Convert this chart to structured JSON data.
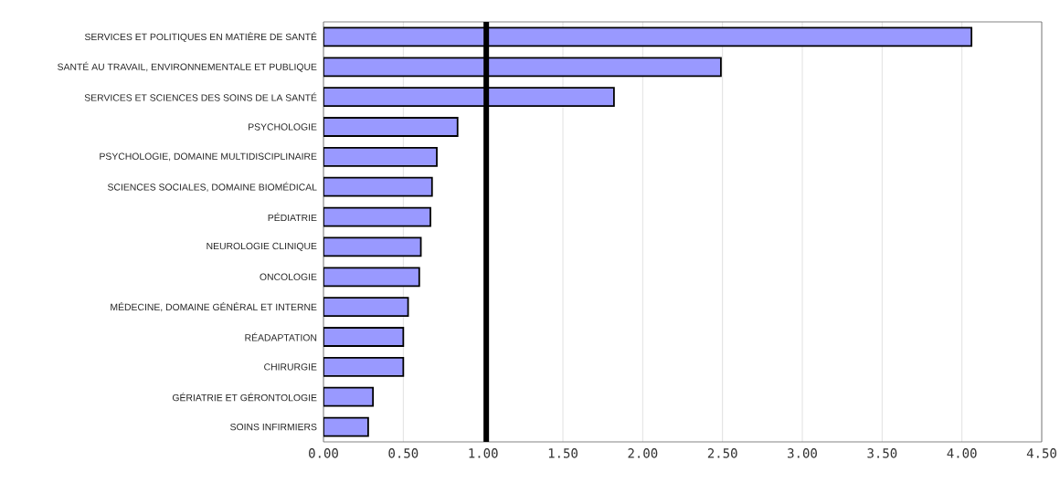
{
  "chart_data": {
    "type": "bar",
    "orientation": "horizontal",
    "categories": [
      "SERVICES ET POLITIQUES EN MATIÈRE DE SANTÉ",
      "SANTÉ AU TRAVAIL, ENVIRONNEMENTALE ET PUBLIQUE",
      "SERVICES ET SCIENCES DES SOINS DE LA SANTÉ",
      "PSYCHOLOGIE",
      "PSYCHOLOGIE, DOMAINE MULTIDISCIPLINAIRE",
      "SCIENCES SOCIALES, DOMAINE BIOMÉDICAL",
      "PÉDIATRIE",
      "NEUROLOGIE CLINIQUE",
      "ONCOLOGIE",
      "MÉDECINE, DOMAINE GÉNÉRAL ET INTERNE",
      "RÉADAPTATION",
      "CHIRURGIE",
      "GÉRIATRIE ET GÉRONTOLOGIE",
      "SOINS INFIRMIERS"
    ],
    "values": [
      4.06,
      2.49,
      1.82,
      0.84,
      0.71,
      0.68,
      0.67,
      0.61,
      0.6,
      0.53,
      0.5,
      0.5,
      0.31,
      0.28
    ],
    "color": "#9999ff",
    "xlim": [
      0,
      4.5
    ],
    "xticks": [
      {
        "value": 0,
        "label": "0.00"
      },
      {
        "value": 0.5,
        "label": "0.50"
      },
      {
        "value": 1,
        "label": "1.00"
      },
      {
        "value": 1.5,
        "label": "1.50"
      },
      {
        "value": 2,
        "label": "2.00"
      },
      {
        "value": 2.5,
        "label": "2.50"
      },
      {
        "value": 3,
        "label": "3.00"
      },
      {
        "value": 3.5,
        "label": "3.50"
      },
      {
        "value": 4,
        "label": "4.00"
      },
      {
        "value": 4.5,
        "label": "4.50"
      }
    ],
    "grid": "x",
    "ref_lines": [
      {
        "axis": "x",
        "value": 1.02,
        "color": "#000000"
      }
    ]
  }
}
